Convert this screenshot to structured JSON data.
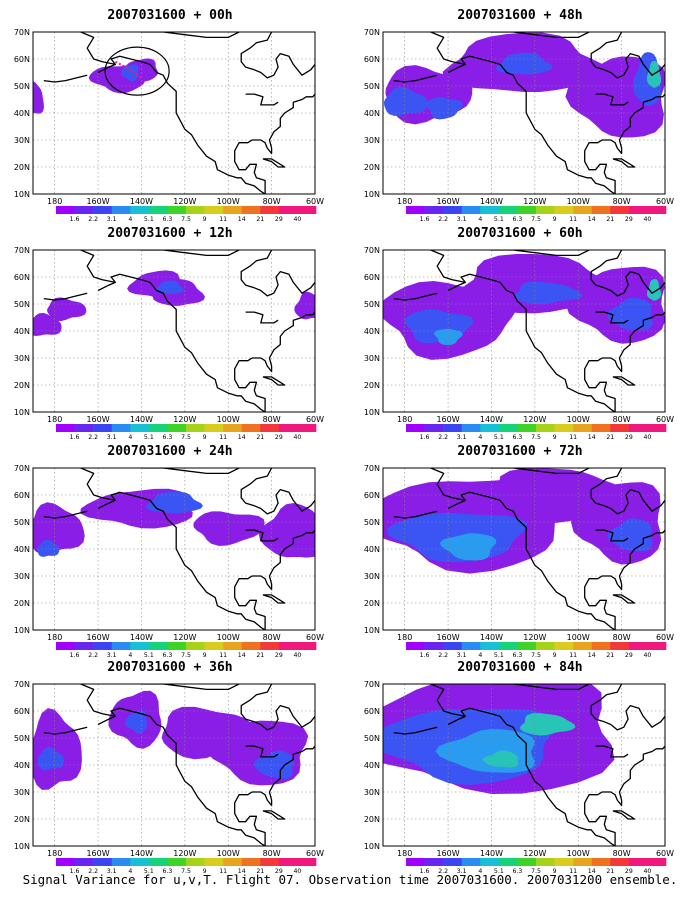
{
  "caption": "Signal Variance for u,v,T. Flight 07. Observation time 2007031600. 2007031200 ensemble.",
  "map_extent": {
    "lon": [
      -190,
      -60
    ],
    "lat": [
      10,
      70
    ]
  },
  "lon_ticks": [
    {
      "lon": -180,
      "label": "180"
    },
    {
      "lon": -160,
      "label": "160W"
    },
    {
      "lon": -140,
      "label": "140W"
    },
    {
      "lon": -120,
      "label": "120W"
    },
    {
      "lon": -100,
      "label": "100W"
    },
    {
      "lon": -80,
      "label": "80W"
    },
    {
      "lon": -60,
      "label": "60W"
    }
  ],
  "lat_ticks": [
    {
      "lat": 10,
      "label": "10N"
    },
    {
      "lat": 20,
      "label": "20N"
    },
    {
      "lat": 30,
      "label": "30N"
    },
    {
      "lat": 40,
      "label": "40N"
    },
    {
      "lat": 50,
      "label": "50N"
    },
    {
      "lat": 60,
      "label": "60N"
    },
    {
      "lat": 70,
      "label": "70N"
    }
  ],
  "colorbar": {
    "labels": [
      "1.6",
      "2.2",
      "3.1",
      "4",
      "5.1",
      "6.3",
      "7.5",
      "9",
      "11",
      "14",
      "21",
      "29",
      "40"
    ],
    "colors": [
      "#9f00ff",
      "#6a25ee",
      "#3c46f0",
      "#2a8cf0",
      "#18c0d6",
      "#16d27a",
      "#3ed425",
      "#a6d21a",
      "#d9cc1f",
      "#e7a51f",
      "#ee7220",
      "#f2383a",
      "#f0187c"
    ]
  },
  "fill_colors": {
    "level1": "#8a1ee6",
    "level2": "#3b55f5",
    "level3": "#2a9cf0",
    "level4": "#28c4b8",
    "level5": "#2ed080"
  },
  "panels": [
    {
      "id": "p00",
      "title": "2007031600 + 00h",
      "column": 0,
      "row": 0,
      "observation_marker": true,
      "blobs": [
        {
          "lon": -150,
          "lat": 53,
          "rx": 13,
          "ry": 5,
          "level": 1
        },
        {
          "lon": -140,
          "lat": 56,
          "rx": 8,
          "ry": 4,
          "level": 1
        },
        {
          "lon": -145,
          "lat": 55,
          "rx": 4,
          "ry": 3,
          "level": 2
        },
        {
          "lon": -190,
          "lat": 45,
          "rx": 5,
          "ry": 6,
          "level": 1
        }
      ]
    },
    {
      "id": "p12",
      "title": "2007031600 + 12h",
      "column": 0,
      "row": 1,
      "observation_marker": false,
      "blobs": [
        {
          "lon": -132,
          "lat": 57,
          "rx": 13,
          "ry": 5,
          "level": 1
        },
        {
          "lon": -123,
          "lat": 54,
          "rx": 11,
          "ry": 5,
          "level": 1
        },
        {
          "lon": -127,
          "lat": 56,
          "rx": 6,
          "ry": 2.5,
          "level": 2
        },
        {
          "lon": -175,
          "lat": 48,
          "rx": 9,
          "ry": 4,
          "level": 1
        },
        {
          "lon": -185,
          "lat": 42,
          "rx": 8,
          "ry": 4,
          "level": 1
        },
        {
          "lon": -63,
          "lat": 49,
          "rx": 6,
          "ry": 5,
          "level": 1
        }
      ]
    },
    {
      "id": "p24",
      "title": "2007031600 + 24h",
      "column": 0,
      "row": 2,
      "observation_marker": false,
      "blobs": [
        {
          "lon": -180,
          "lat": 47,
          "rx": 13,
          "ry": 9,
          "level": 1
        },
        {
          "lon": -183,
          "lat": 40,
          "rx": 5,
          "ry": 3,
          "level": 2
        },
        {
          "lon": -140,
          "lat": 55,
          "rx": 25,
          "ry": 7,
          "level": 1
        },
        {
          "lon": -125,
          "lat": 57,
          "rx": 12,
          "ry": 4,
          "level": 2
        },
        {
          "lon": -70,
          "lat": 46,
          "rx": 14,
          "ry": 10,
          "level": 1
        },
        {
          "lon": -100,
          "lat": 48,
          "rx": 16,
          "ry": 6,
          "level": 1
        }
      ]
    },
    {
      "id": "p36",
      "title": "2007031600 + 36h",
      "column": 0,
      "row": 3,
      "observation_marker": false,
      "blobs": [
        {
          "lon": -180,
          "lat": 45,
          "rx": 12,
          "ry": 14,
          "level": 1
        },
        {
          "lon": -182,
          "lat": 42,
          "rx": 6,
          "ry": 4,
          "level": 2
        },
        {
          "lon": -142,
          "lat": 57,
          "rx": 12,
          "ry": 10,
          "level": 1
        },
        {
          "lon": -142,
          "lat": 56,
          "rx": 5,
          "ry": 4,
          "level": 2
        },
        {
          "lon": -110,
          "lat": 52,
          "rx": 22,
          "ry": 9,
          "level": 1
        },
        {
          "lon": -85,
          "lat": 45,
          "rx": 22,
          "ry": 12,
          "level": 1
        },
        {
          "lon": -78,
          "lat": 40,
          "rx": 9,
          "ry": 5,
          "level": 2
        }
      ]
    },
    {
      "id": "p48",
      "title": "2007031600 + 48h",
      "column": 1,
      "row": 0,
      "observation_marker": false,
      "blobs": [
        {
          "lon": -170,
          "lat": 47,
          "rx": 20,
          "ry": 10,
          "level": 1
        },
        {
          "lon": -180,
          "lat": 44,
          "rx": 10,
          "ry": 5,
          "level": 2
        },
        {
          "lon": -162,
          "lat": 42,
          "rx": 8,
          "ry": 4,
          "level": 2
        },
        {
          "lon": -125,
          "lat": 58,
          "rx": 35,
          "ry": 11,
          "level": 1
        },
        {
          "lon": -125,
          "lat": 58,
          "rx": 12,
          "ry": 4,
          "level": 2
        },
        {
          "lon": -80,
          "lat": 46,
          "rx": 22,
          "ry": 15,
          "level": 1
        },
        {
          "lon": -68,
          "lat": 52,
          "rx": 6,
          "ry": 10,
          "level": 2
        },
        {
          "lon": -65,
          "lat": 54,
          "rx": 3,
          "ry": 5,
          "level": 4
        }
      ]
    },
    {
      "id": "p60",
      "title": "2007031600 + 60h",
      "column": 1,
      "row": 1,
      "observation_marker": false,
      "blobs": [
        {
          "lon": -160,
          "lat": 45,
          "rx": 30,
          "ry": 14,
          "level": 1
        },
        {
          "lon": -165,
          "lat": 42,
          "rx": 15,
          "ry": 6,
          "level": 2
        },
        {
          "lon": -160,
          "lat": 38,
          "rx": 6,
          "ry": 3,
          "level": 3
        },
        {
          "lon": -120,
          "lat": 57,
          "rx": 35,
          "ry": 11,
          "level": 1
        },
        {
          "lon": -115,
          "lat": 54,
          "rx": 15,
          "ry": 4,
          "level": 2
        },
        {
          "lon": -80,
          "lat": 50,
          "rx": 22,
          "ry": 14,
          "level": 1
        },
        {
          "lon": -75,
          "lat": 46,
          "rx": 10,
          "ry": 6,
          "level": 2
        },
        {
          "lon": -65,
          "lat": 55,
          "rx": 3,
          "ry": 4,
          "level": 4
        }
      ]
    },
    {
      "id": "p72",
      "title": "2007031600 + 72h",
      "column": 1,
      "row": 2,
      "observation_marker": false,
      "blobs": [
        {
          "lon": -150,
          "lat": 50,
          "rx": 45,
          "ry": 17,
          "level": 1
        },
        {
          "lon": -155,
          "lat": 45,
          "rx": 30,
          "ry": 9,
          "level": 2
        },
        {
          "lon": -150,
          "lat": 41,
          "rx": 12,
          "ry": 5,
          "level": 3
        },
        {
          "lon": -110,
          "lat": 60,
          "rx": 30,
          "ry": 10,
          "level": 1
        },
        {
          "lon": -80,
          "lat": 50,
          "rx": 20,
          "ry": 15,
          "level": 1
        },
        {
          "lon": -75,
          "lat": 45,
          "rx": 10,
          "ry": 6,
          "level": 2
        }
      ]
    },
    {
      "id": "p84",
      "title": "2007031600 + 84h",
      "column": 1,
      "row": 3,
      "observation_marker": false,
      "blobs": [
        {
          "lon": -140,
          "lat": 52,
          "rx": 60,
          "ry": 22,
          "level": 1
        },
        {
          "lon": -150,
          "lat": 48,
          "rx": 40,
          "ry": 14,
          "level": 2
        },
        {
          "lon": -140,
          "lat": 45,
          "rx": 22,
          "ry": 8,
          "level": 3
        },
        {
          "lon": -135,
          "lat": 42,
          "rx": 8,
          "ry": 3,
          "level": 4
        },
        {
          "lon": -115,
          "lat": 55,
          "rx": 12,
          "ry": 4,
          "level": 4
        }
      ]
    }
  ]
}
